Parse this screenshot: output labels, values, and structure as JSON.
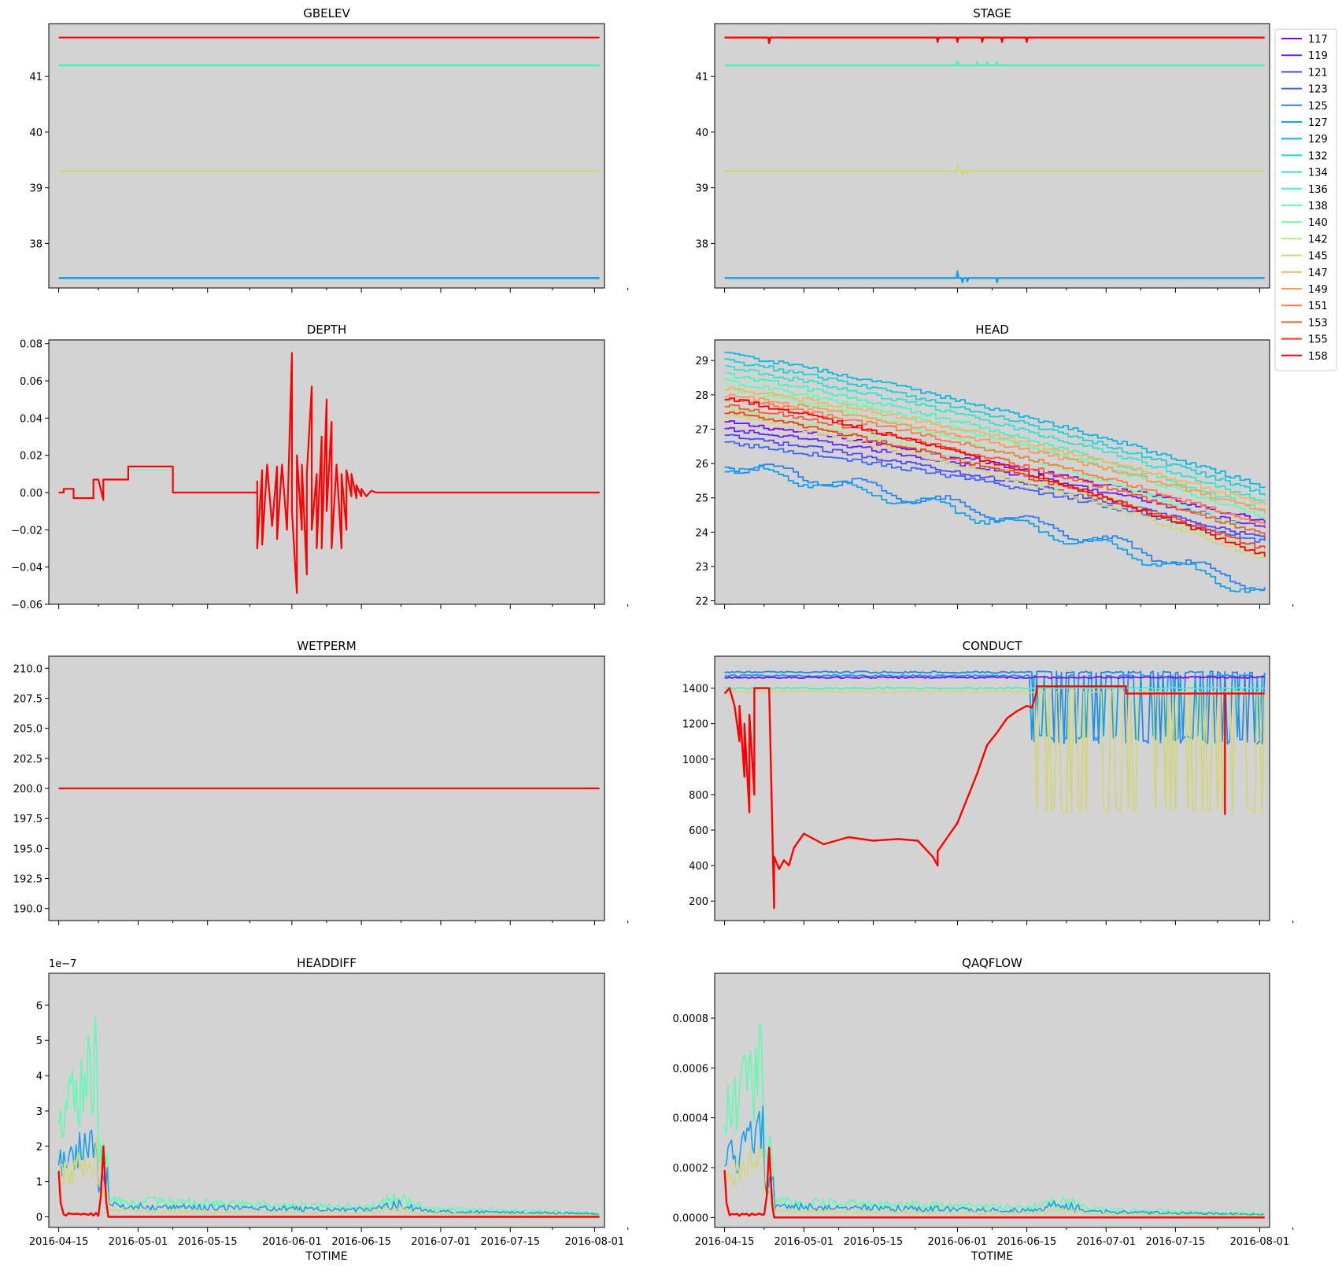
{
  "figure": {
    "xlabel": "TOTIME",
    "date_ticks": [
      "2016-04-15",
      "2016-05-01",
      "2016-05-15",
      "2016-06-01",
      "2016-06-15",
      "2016-07-01",
      "2016-07-15",
      "2016-08-01"
    ],
    "x_range": [
      "2016-04-13",
      "2016-08-03"
    ],
    "data_range": [
      "2016-04-15",
      "2016-08-02"
    ],
    "plot_background": "#d3d3d3",
    "colormap": "rainbow"
  },
  "legend": {
    "placement": "right of STAGE panel",
    "entries": [
      {
        "label": "117",
        "color": "#8000ff"
      },
      {
        "label": "119",
        "color": "#6a22fe"
      },
      {
        "label": "121",
        "color": "#5444fd"
      },
      {
        "label": "123",
        "color": "#3e64f9"
      },
      {
        "label": "125",
        "color": "#2884f4"
      },
      {
        "label": "127",
        "color": "#12a1ec"
      },
      {
        "label": "129",
        "color": "#04b9e3"
      },
      {
        "label": "132",
        "color": "#1ad1d9"
      },
      {
        "label": "134",
        "color": "#30e4cd"
      },
      {
        "label": "136",
        "color": "#46f2c0"
      },
      {
        "label": "138",
        "color": "#5cfcb2"
      },
      {
        "label": "140",
        "color": "#72fea2"
      },
      {
        "label": "142",
        "color": "#a8ee8a"
      },
      {
        "label": "145",
        "color": "#d2d676"
      },
      {
        "label": "147",
        "color": "#f6b563"
      },
      {
        "label": "149",
        "color": "#ff9a52"
      },
      {
        "label": "151",
        "color": "#ff7a42"
      },
      {
        "label": "153",
        "color": "#ff5a30"
      },
      {
        "label": "155",
        "color": "#ff3820"
      },
      {
        "label": "158",
        "color": "#ff0000"
      }
    ]
  },
  "chart_data": [
    {
      "id": "gbelev",
      "type": "line",
      "title": "GBELEV",
      "xlabel": "",
      "ylim": [
        37.2,
        41.95
      ],
      "yticks": [
        "38",
        "39",
        "40",
        "41"
      ],
      "ytick_values": [
        38,
        39,
        40,
        41
      ],
      "series": [
        {
          "name": "127",
          "values": 37.38
        },
        {
          "name": "145",
          "values": 39.3
        },
        {
          "name": "136",
          "values": 41.2
        },
        {
          "name": "158",
          "values": 41.7
        }
      ]
    },
    {
      "id": "stage",
      "type": "line",
      "title": "STAGE",
      "xlabel": "",
      "ylim": [
        37.2,
        41.95
      ],
      "yticks": [
        "38",
        "39",
        "40",
        "41"
      ],
      "ytick_values": [
        38,
        39,
        40,
        41
      ],
      "series": [
        {
          "name": "127",
          "base": 37.38,
          "spikes": [
            [
              "2016-06-01",
              0.12
            ],
            [
              "2016-06-02",
              -0.08
            ],
            [
              "2016-06-03",
              -0.06
            ],
            [
              "2016-06-09",
              -0.08
            ]
          ]
        },
        {
          "name": "145",
          "base": 39.3,
          "spikes": [
            [
              "2016-06-01",
              0.1
            ],
            [
              "2016-06-02",
              -0.08
            ],
            [
              "2016-06-03",
              -0.06
            ]
          ]
        },
        {
          "name": "136",
          "base": 41.2,
          "spikes": [
            [
              "2016-06-01",
              0.08
            ],
            [
              "2016-06-05",
              0.06
            ],
            [
              "2016-06-07",
              0.06
            ],
            [
              "2016-06-09",
              0.06
            ]
          ]
        },
        {
          "name": "158",
          "base": 41.7,
          "spikes": [
            [
              "2016-04-24",
              -0.1
            ],
            [
              "2016-05-28",
              -0.08
            ],
            [
              "2016-06-01",
              -0.08
            ],
            [
              "2016-06-06",
              -0.08
            ],
            [
              "2016-06-10",
              -0.08
            ],
            [
              "2016-06-15",
              -0.08
            ]
          ]
        }
      ]
    },
    {
      "id": "depth",
      "type": "line",
      "title": "DEPTH",
      "xlabel": "",
      "ylim": [
        -0.06,
        0.082
      ],
      "yticks": [
        "−0.06",
        "−0.04",
        "−0.02",
        "0.00",
        "0.02",
        "0.04",
        "0.06",
        "0.08"
      ],
      "ytick_values": [
        -0.06,
        -0.04,
        -0.02,
        0,
        0.02,
        0.04,
        0.06,
        0.08
      ],
      "series": [
        {
          "name": "158",
          "points": [
            [
              "2016-04-15",
              0
            ],
            [
              "2016-04-16",
              0
            ],
            [
              "2016-04-16",
              0.002
            ],
            [
              "2016-04-18",
              0.002
            ],
            [
              "2016-04-18",
              -0.003
            ],
            [
              "2016-04-22",
              -0.003
            ],
            [
              "2016-04-22",
              0.007
            ],
            [
              "2016-04-23",
              0.007
            ],
            [
              "2016-04-24",
              -0.004
            ],
            [
              "2016-04-24",
              0.007
            ],
            [
              "2016-04-29",
              0.007
            ],
            [
              "2016-04-29",
              0.014
            ],
            [
              "2016-05-08",
              0.014
            ],
            [
              "2016-05-08",
              0
            ],
            [
              "2016-05-25",
              0
            ],
            [
              "2016-05-25",
              0.006
            ],
            [
              "2016-05-25",
              -0.03
            ],
            [
              "2016-05-26",
              0.012
            ],
            [
              "2016-05-26",
              -0.028
            ],
            [
              "2016-05-27",
              0.015
            ],
            [
              "2016-05-28",
              -0.018
            ],
            [
              "2016-05-29",
              0.014
            ],
            [
              "2016-05-29",
              -0.025
            ],
            [
              "2016-05-30",
              0.015
            ],
            [
              "2016-05-31",
              -0.02
            ],
            [
              "2016-06-01",
              0.075
            ],
            [
              "2016-06-01",
              -0.01
            ],
            [
              "2016-06-02",
              -0.054
            ],
            [
              "2016-06-02",
              0.02
            ],
            [
              "2016-06-03",
              -0.02
            ],
            [
              "2016-06-03",
              0.015
            ],
            [
              "2016-06-04",
              -0.044
            ],
            [
              "2016-06-04",
              0.01
            ],
            [
              "2016-06-05",
              0.057
            ],
            [
              "2016-06-05",
              -0.02
            ],
            [
              "2016-06-06",
              0.01
            ],
            [
              "2016-06-06",
              -0.03
            ],
            [
              "2016-06-07",
              0.03
            ],
            [
              "2016-06-07",
              -0.03
            ],
            [
              "2016-06-08",
              0.05
            ],
            [
              "2016-06-08",
              -0.01
            ],
            [
              "2016-06-09",
              0.038
            ],
            [
              "2016-06-09",
              -0.03
            ],
            [
              "2016-06-10",
              0.015
            ],
            [
              "2016-06-11",
              -0.03
            ],
            [
              "2016-06-11",
              0.01
            ],
            [
              "2016-06-12",
              -0.02
            ],
            [
              "2016-06-12",
              0.012
            ],
            [
              "2016-06-13",
              -0.002
            ],
            [
              "2016-06-13",
              0.01
            ],
            [
              "2016-06-14",
              -0.003
            ],
            [
              "2016-06-14",
              0.004
            ],
            [
              "2016-06-15",
              -0.002
            ],
            [
              "2016-06-15",
              0.002
            ],
            [
              "2016-06-16",
              -0.002
            ],
            [
              "2016-06-17",
              0.001
            ],
            [
              "2016-06-18",
              0
            ],
            [
              "2016-08-02",
              0
            ]
          ]
        },
        {
          "name": "138",
          "points": [
            [
              "2016-04-29",
              0.012
            ],
            [
              "2016-05-08",
              0.012
            ]
          ]
        }
      ]
    },
    {
      "id": "wetperm",
      "type": "line",
      "title": "WETPERM",
      "xlabel": "",
      "ylim": [
        189.0,
        211.0
      ],
      "yticks": [
        "190.0",
        "192.5",
        "195.0",
        "197.5",
        "200.0",
        "202.5",
        "205.0",
        "207.5",
        "210.0"
      ],
      "ytick_values": [
        190,
        192.5,
        195,
        197.5,
        200,
        202.5,
        205,
        207.5,
        210
      ],
      "series": [
        {
          "name": "158",
          "values": 200.0
        }
      ]
    },
    {
      "id": "head",
      "type": "line",
      "title": "HEAD",
      "xlabel": "",
      "ylim": [
        21.9,
        29.6
      ],
      "yticks": [
        "22",
        "23",
        "24",
        "25",
        "26",
        "27",
        "28",
        "29"
      ],
      "ytick_values": [
        22,
        23,
        24,
        25,
        26,
        27,
        28,
        29
      ],
      "series": [
        {
          "name": "117",
          "start": 27.2,
          "end": 24.3
        },
        {
          "name": "119",
          "start": 27.0,
          "end": 24.1
        },
        {
          "name": "121",
          "start": 26.8,
          "end": 23.8
        },
        {
          "name": "123",
          "start": 26.6,
          "end": 23.7
        },
        {
          "name": "125",
          "start": 26.0,
          "end": 22.4
        },
        {
          "name": "127",
          "start": 25.9,
          "end": 22.2
        },
        {
          "name": "129",
          "start": 29.2,
          "end": 25.3
        },
        {
          "name": "132",
          "start": 29.0,
          "end": 25.1
        },
        {
          "name": "134",
          "start": 28.8,
          "end": 24.9
        },
        {
          "name": "136",
          "start": 28.6,
          "end": 24.6
        },
        {
          "name": "138",
          "start": 28.4,
          "end": 24.4
        },
        {
          "name": "140",
          "start": 28.2,
          "end": 23.9
        },
        {
          "name": "142",
          "start": 27.6,
          "end": 23.4
        },
        {
          "name": "145",
          "start": 27.4,
          "end": 23.2
        },
        {
          "name": "147",
          "start": 28.2,
          "end": 24.8
        },
        {
          "name": "149",
          "start": 28.0,
          "end": 24.6
        },
        {
          "name": "151",
          "start": 27.9,
          "end": 24.2
        },
        {
          "name": "153",
          "start": 27.7,
          "end": 23.9
        },
        {
          "name": "155",
          "start": 27.5,
          "end": 23.5
        },
        {
          "name": "158",
          "start": 27.9,
          "end": 23.3
        }
      ]
    },
    {
      "id": "conduct",
      "type": "line",
      "title": "CONDUCT",
      "xlabel": "",
      "ylim": [
        90,
        1580
      ],
      "yticks": [
        "200",
        "400",
        "600",
        "800",
        "1000",
        "1200",
        "1400"
      ],
      "ytick_values": [
        200,
        400,
        600,
        800,
        1000,
        1200,
        1400
      ],
      "series": [
        {
          "name": "125",
          "levels": [
            1490,
            1100
          ]
        },
        {
          "name": "127",
          "levels": [
            1470,
            1120
          ]
        },
        {
          "name": "117",
          "levels": [
            1460
          ]
        },
        {
          "name": "136",
          "levels": [
            1400
          ]
        },
        {
          "name": "145",
          "levels": [
            1380,
            710
          ]
        },
        {
          "name": "158",
          "points": [
            [
              "2016-04-15",
              1370
            ],
            [
              "2016-04-16",
              1400
            ],
            [
              "2016-04-17",
              1300
            ],
            [
              "2016-04-18",
              1100
            ],
            [
              "2016-04-18",
              1300
            ],
            [
              "2016-04-19",
              900
            ],
            [
              "2016-04-19",
              1200
            ],
            [
              "2016-04-20",
              700
            ],
            [
              "2016-04-20",
              1250
            ],
            [
              "2016-04-21",
              800
            ],
            [
              "2016-04-21",
              1400
            ],
            [
              "2016-04-24",
              1400
            ],
            [
              "2016-04-25",
              160
            ],
            [
              "2016-04-25",
              450
            ],
            [
              "2016-04-26",
              380
            ],
            [
              "2016-04-27",
              430
            ],
            [
              "2016-04-28",
              400
            ],
            [
              "2016-04-29",
              500
            ],
            [
              "2016-05-01",
              580
            ],
            [
              "2016-05-05",
              520
            ],
            [
              "2016-05-10",
              560
            ],
            [
              "2016-05-15",
              540
            ],
            [
              "2016-05-20",
              550
            ],
            [
              "2016-05-24",
              540
            ],
            [
              "2016-05-27",
              450
            ],
            [
              "2016-05-28",
              400
            ],
            [
              "2016-05-28",
              480
            ],
            [
              "2016-05-30",
              560
            ],
            [
              "2016-06-01",
              640
            ],
            [
              "2016-06-03",
              780
            ],
            [
              "2016-06-05",
              920
            ],
            [
              "2016-06-07",
              1080
            ],
            [
              "2016-06-09",
              1150
            ],
            [
              "2016-06-11",
              1230
            ],
            [
              "2016-06-13",
              1270
            ],
            [
              "2016-06-15",
              1300
            ],
            [
              "2016-06-16",
              1290
            ],
            [
              "2016-06-17",
              1380
            ],
            [
              "2016-06-17",
              1410
            ],
            [
              "2016-07-05",
              1410
            ],
            [
              "2016-07-05",
              1370
            ],
            [
              "2016-07-20",
              1370
            ],
            [
              "2016-07-25",
              1370
            ],
            [
              "2016-07-25",
              690
            ],
            [
              "2016-07-25",
              1370
            ],
            [
              "2016-08-02",
              1370
            ]
          ]
        }
      ]
    },
    {
      "id": "headdiff",
      "type": "line",
      "title": "HEADDIFF",
      "xlabel": "TOTIME",
      "offset_label": "1e−7",
      "ylim": [
        -0.3,
        6.9
      ],
      "yticks": [
        "0",
        "1",
        "2",
        "3",
        "4",
        "5",
        "6"
      ],
      "ytick_values": [
        0,
        1,
        2,
        3,
        4,
        5,
        6
      ],
      "series": [
        {
          "name": "138",
          "peak": 6.6,
          "tail": 0.5
        },
        {
          "name": "127",
          "peak": 3.7,
          "tail": 0.35
        },
        {
          "name": "145",
          "peak": 2.6,
          "tail": 0.2
        },
        {
          "name": "158",
          "peak": 2.0,
          "start": 1.3
        }
      ]
    },
    {
      "id": "qaqflow",
      "type": "line",
      "title": "QAQFLOW",
      "xlabel": "TOTIME",
      "ylim": [
        -4e-05,
        0.00098
      ],
      "yticks": [
        "0.0000",
        "0.0002",
        "0.0004",
        "0.0006",
        "0.0008"
      ],
      "ytick_values": [
        0,
        0.0002,
        0.0004,
        0.0006,
        0.0008
      ],
      "series": [
        {
          "name": "138",
          "peak": 0.00093,
          "tail": 7e-05
        },
        {
          "name": "127",
          "peak": 0.00052,
          "tail": 5e-05
        },
        {
          "name": "145",
          "peak": 0.00036,
          "tail": 3e-05
        },
        {
          "name": "158",
          "peak": 0.00028,
          "start": 0.00019
        }
      ]
    }
  ]
}
